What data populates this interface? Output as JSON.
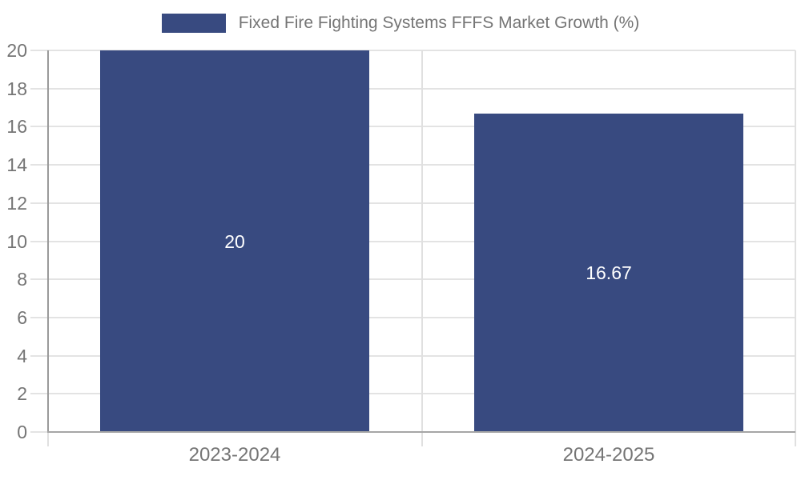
{
  "chart_data": {
    "type": "bar",
    "title": "Fixed Fire Fighting Systems FFFS Market Growth (%)",
    "legend": "Fixed Fire Fighting Systems FFFS Market Growth (%)",
    "legend_position": "top",
    "categories": [
      "2023-2024",
      "2024-2025"
    ],
    "values": [
      20,
      16.67
    ],
    "value_labels": [
      "20",
      "16.67"
    ],
    "yticks": [
      0,
      2,
      4,
      6,
      8,
      10,
      12,
      14,
      16,
      18,
      20
    ],
    "ytick_labels": [
      "0",
      "2",
      "4",
      "6",
      "8",
      "10",
      "12",
      "14",
      "16",
      "18",
      "20"
    ],
    "ylim": [
      0,
      20
    ],
    "xlabel": "",
    "ylabel": "",
    "grid": true,
    "colors": {
      "bar": "#384A80",
      "axis_line": "#A6A6A6",
      "y_axis_line": "#9A9A9A",
      "gridline": "#E3E3E3",
      "boundary_line": "#E0E0E0",
      "tick_label": "#757575",
      "value_label": "#FFFFFF",
      "background": "#FFFFFF"
    }
  }
}
